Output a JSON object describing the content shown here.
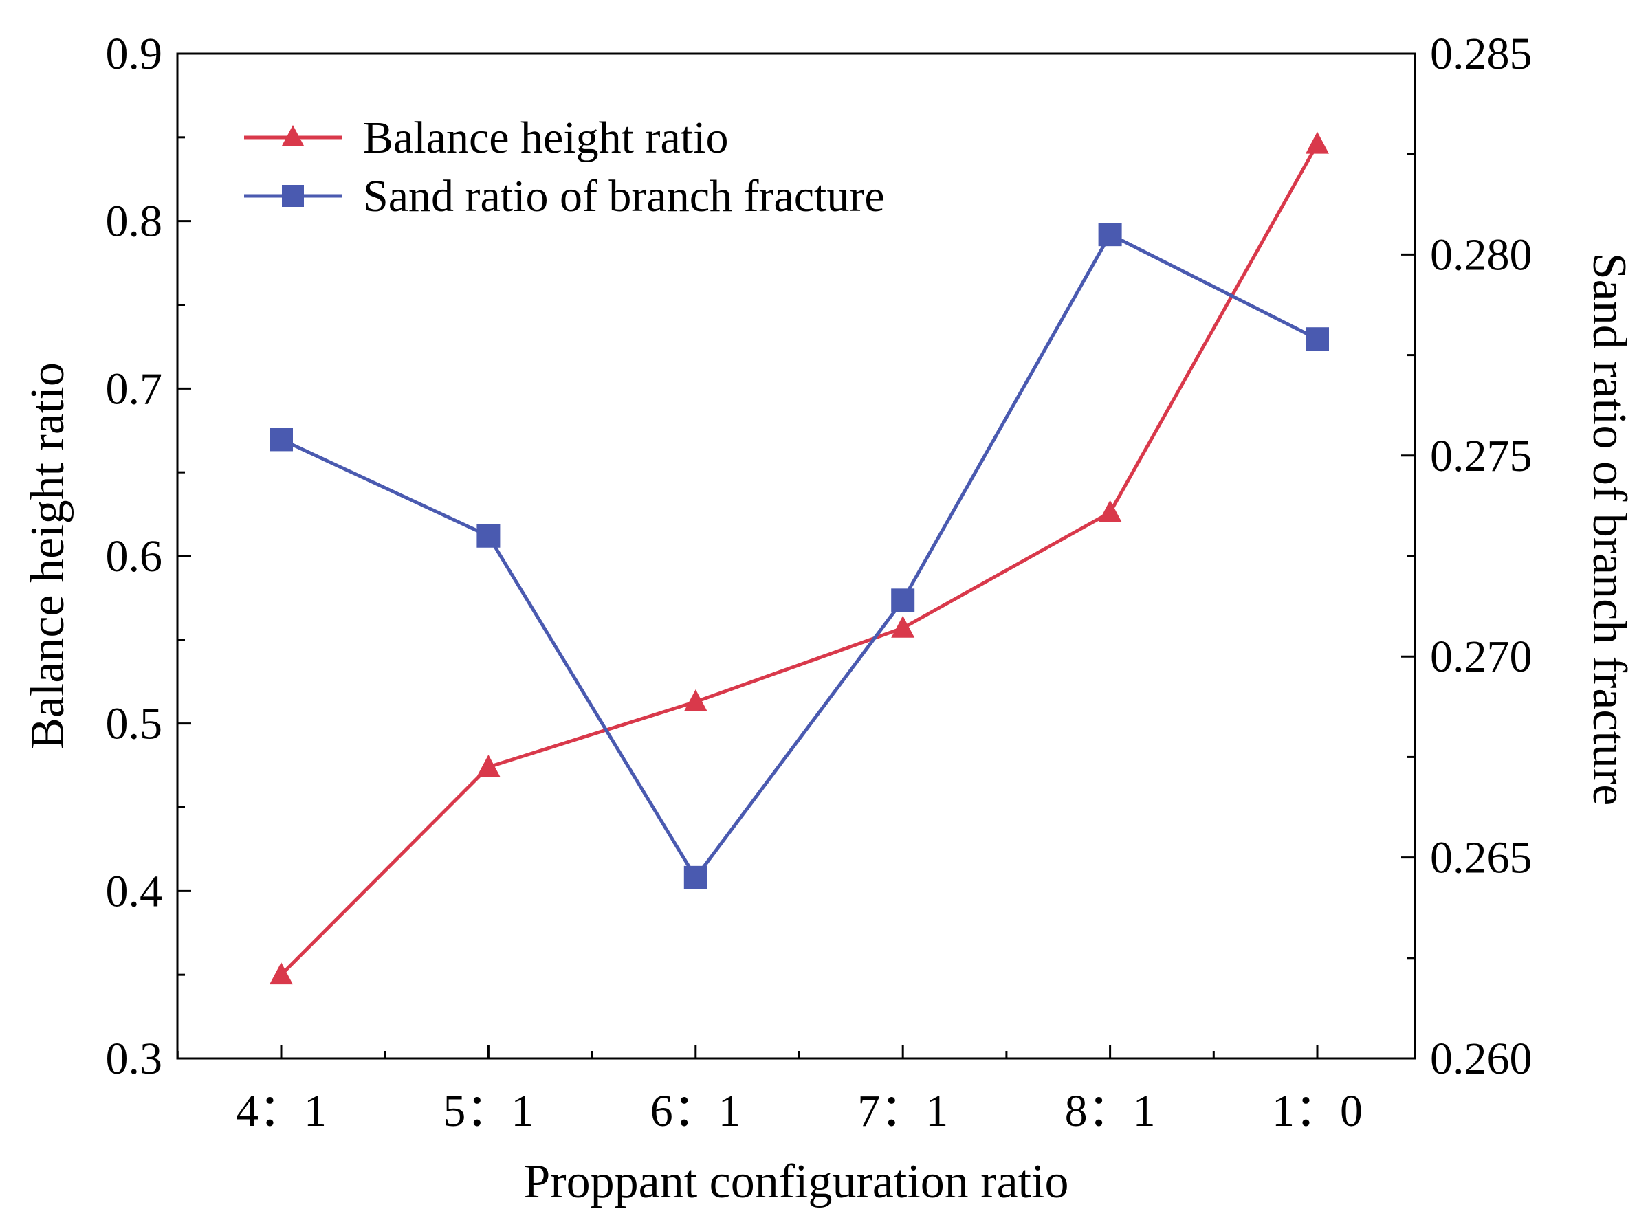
{
  "chart_data": {
    "type": "line",
    "title": "",
    "xlabel": "Proppant configuration ratio",
    "ylabel": "Balance height ratio",
    "ylabel_right": "Sand ratio of branch fracture",
    "categories": [
      "4：1",
      "5：1",
      "6：1",
      "7：1",
      "8：1",
      "1：0"
    ],
    "ylim": [
      0.3,
      0.9
    ],
    "yticks": [
      "0.3",
      "0.4",
      "0.5",
      "0.6",
      "0.7",
      "0.8",
      "0.9"
    ],
    "ylim_right": [
      0.26,
      0.285
    ],
    "yticks_right": [
      "0.260",
      "0.265",
      "0.270",
      "0.275",
      "0.280",
      "0.285"
    ],
    "legend_position": "top-left",
    "series": [
      {
        "name": "Balance height ratio",
        "axis": "left",
        "marker": "triangle",
        "color": "#d9394b",
        "values": [
          0.35,
          0.474,
          0.513,
          0.557,
          0.626,
          0.846
        ]
      },
      {
        "name": "Sand ratio of branch fracture",
        "axis": "right",
        "marker": "square",
        "color": "#4a5ab0",
        "values": [
          0.2754,
          0.273,
          0.2645,
          0.2714,
          0.2805,
          0.2779
        ]
      }
    ]
  }
}
